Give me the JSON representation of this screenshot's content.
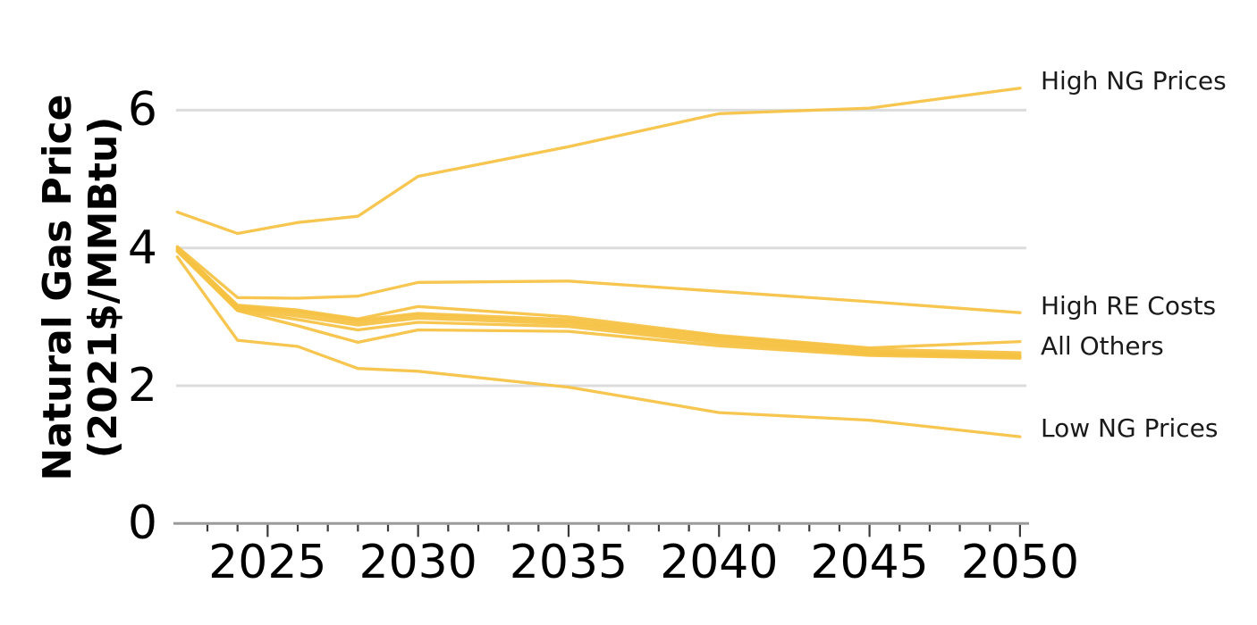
{
  "figure": {
    "ylabel_line1": "Natural Gas Price",
    "ylabel_line2": "(2021$/MMBtu)"
  },
  "chart_data": {
    "type": "line",
    "title": "",
    "xlabel": "",
    "ylabel": "Natural Gas Price (2021$/MMBtu)",
    "x": [
      2022,
      2024,
      2026,
      2028,
      2030,
      2035,
      2040,
      2045,
      2050
    ],
    "xlim": [
      2021.9,
      2050.3
    ],
    "ylim": [
      0,
      7.6
    ],
    "grid": "horizontal",
    "gridlines_y": [
      2,
      4,
      6
    ],
    "yticks": [
      0,
      2,
      4,
      6
    ],
    "ytick_labels": [
      "0",
      "2",
      "4",
      "6"
    ],
    "xticks_major": [
      2025,
      2030,
      2035,
      2040,
      2045,
      2050
    ],
    "xtick_labels": [
      "2025",
      "2030",
      "2035",
      "2040",
      "2045",
      "2050"
    ],
    "xticks_minor_start": 2023,
    "xticks_minor_end": 2050,
    "legend_position": "direct-labels-right",
    "line_color": "#F5C243",
    "series": [
      {
        "name": "High NG Prices",
        "values": [
          4.52,
          4.21,
          4.37,
          4.46,
          5.04,
          5.47,
          5.95,
          6.03,
          6.32
        ]
      },
      {
        "name": "High RE Costs",
        "values": [
          4.02,
          3.28,
          3.27,
          3.3,
          3.5,
          3.52,
          3.37,
          3.22,
          3.06
        ]
      },
      {
        "name": "All Others 1",
        "values": [
          4.0,
          3.17,
          3.1,
          2.97,
          3.15,
          3.0,
          2.73,
          2.55,
          2.64
        ]
      },
      {
        "name": "All Others 2",
        "values": [
          4.0,
          3.15,
          3.08,
          2.95,
          3.05,
          2.96,
          2.71,
          2.53,
          2.48
        ]
      },
      {
        "name": "All Others 3",
        "values": [
          3.98,
          3.13,
          3.05,
          2.92,
          3.02,
          2.93,
          2.68,
          2.5,
          2.45
        ]
      },
      {
        "name": "All Others 4",
        "values": [
          3.97,
          3.12,
          3.01,
          2.88,
          2.98,
          2.9,
          2.65,
          2.48,
          2.43
        ]
      },
      {
        "name": "All Others 5",
        "values": [
          3.96,
          3.1,
          2.96,
          2.81,
          2.92,
          2.86,
          2.62,
          2.46,
          2.41
        ]
      },
      {
        "name": "All Others 6",
        "values": [
          3.95,
          3.09,
          2.87,
          2.63,
          2.81,
          2.79,
          2.58,
          2.44,
          2.4
        ]
      },
      {
        "name": "Low NG Prices",
        "values": [
          3.87,
          2.66,
          2.57,
          2.25,
          2.21,
          1.98,
          1.61,
          1.5,
          1.26
        ]
      }
    ],
    "annotations": [
      {
        "label": "High NG Prices",
        "y": 6.42
      },
      {
        "label": "High RE Costs",
        "y": 3.16
      },
      {
        "label": "All Others",
        "y": 2.57
      },
      {
        "label": "Low NG Prices",
        "y": 1.38
      }
    ]
  },
  "colors": {
    "line": "#F5C243",
    "gridline": "#DCDCDC",
    "axis_line": "#9B9B9B",
    "tick_mark": "#3A3A3A",
    "text": "#000000",
    "annotation_text": "#1A1A1A",
    "background": "#FFFFFF"
  }
}
